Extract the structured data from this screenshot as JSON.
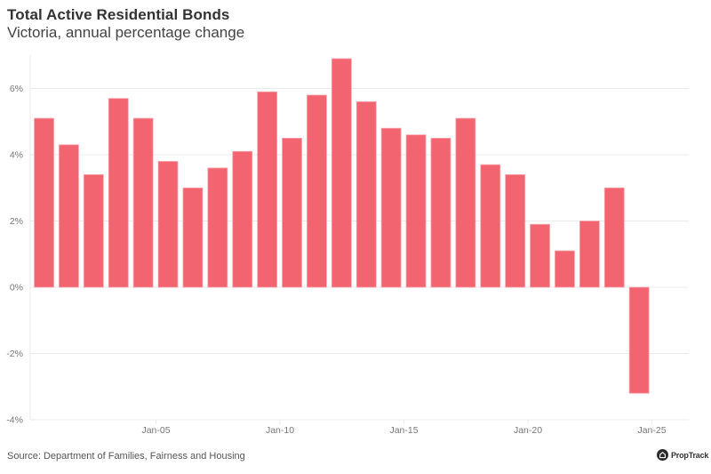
{
  "header": {
    "title": "Total Active Residential Bonds",
    "subtitle": "Victoria, annual percentage change"
  },
  "footer": {
    "source": "Source: Department of Families, Fairness and Housing",
    "logo_text": "PropTrack",
    "logo_icon": "house-icon"
  },
  "colors": {
    "bar": "#F26470",
    "bar_outline": "#F7A6AD",
    "grid": "#EBEBEB",
    "text": "#333333"
  },
  "chart_data": {
    "type": "bar",
    "title": "Total Active Residential Bonds",
    "subtitle": "Victoria, annual percentage change",
    "xlabel": "",
    "ylabel": "",
    "categories": [
      "2000",
      "2001",
      "2002",
      "2003",
      "2004",
      "2005",
      "2006",
      "2007",
      "2008",
      "2009",
      "2010",
      "2011",
      "2012",
      "2013",
      "2014",
      "2015",
      "2016",
      "2017",
      "2018",
      "2019",
      "2020",
      "2021",
      "2022",
      "2023",
      "2024"
    ],
    "values": [
      5.1,
      4.3,
      3.4,
      5.7,
      5.1,
      3.8,
      3.0,
      3.6,
      4.1,
      5.9,
      4.5,
      5.8,
      6.9,
      5.6,
      4.8,
      4.6,
      4.5,
      5.1,
      3.7,
      3.4,
      1.9,
      1.1,
      2.0,
      3.0,
      -3.2
    ],
    "unit": "%",
    "ylim": [
      -4,
      7
    ],
    "y_ticks": [
      -4,
      -2,
      0,
      2,
      4,
      6
    ],
    "y_tick_labels": [
      "-4%",
      "-2%",
      "0%",
      "2%",
      "4%",
      "6%"
    ],
    "x_ticks": [
      2005,
      2010,
      2015,
      2020,
      2025
    ],
    "x_tick_labels": [
      "Jan-05",
      "Jan-10",
      "Jan-15",
      "Jan-20",
      "Jan-25"
    ],
    "grid": true,
    "legend": "none"
  }
}
